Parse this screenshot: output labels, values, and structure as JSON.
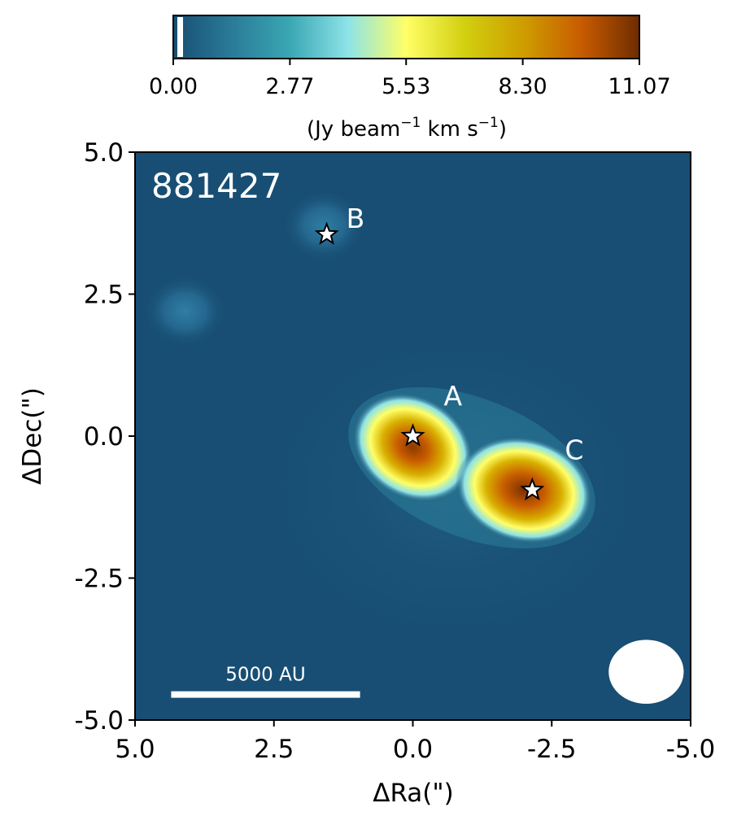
{
  "chart_data": {
    "type": "heatmap",
    "title": "",
    "field_label": "881427",
    "xlabel": "ΔRa(\")",
    "ylabel": "ΔDec(\")",
    "xlim": [
      5.0,
      -5.0
    ],
    "ylim": [
      -5.0,
      5.0
    ],
    "x_ticks": [
      "5.0",
      "2.5",
      "0.0",
      "-2.5",
      "-5.0"
    ],
    "y_ticks": [
      "-5.0",
      "-2.5",
      "0.0",
      "2.5",
      "5.0"
    ],
    "colorbar": {
      "orientation": "horizontal",
      "placement": "top",
      "range": [
        0.0,
        11.07
      ],
      "ticks": [
        "0.00",
        "2.77",
        "5.53",
        "8.30",
        "11.07"
      ],
      "label_prefix": "(Jy beam",
      "label_sup1": "−1",
      "label_mid": " km s",
      "label_sup2": "−1",
      "label_suffix": ")",
      "colormap": [
        "#184e73",
        "#2a7b98",
        "#3aa7b3",
        "#8de3e8",
        "#ffff66",
        "#d2cf10",
        "#ce9e00",
        "#c85c00",
        "#6e2c00"
      ]
    },
    "sources": [
      {
        "name": "A",
        "x": 0.0,
        "y": 0.0
      },
      {
        "name": "B",
        "x": 1.55,
        "y": 3.55
      },
      {
        "name": "C",
        "x": -2.15,
        "y": -0.95
      }
    ],
    "emission_peaks": [
      {
        "x": 0.0,
        "y": -0.2,
        "peak": 10.2
      },
      {
        "x": -2.0,
        "y": -0.95,
        "peak": 11.07
      },
      {
        "x": 1.6,
        "y": 3.7,
        "peak": 1.9
      },
      {
        "x": 4.1,
        "y": 2.2,
        "peak": 1.6
      }
    ],
    "background_level": 0.1,
    "scalebar": {
      "label": "5000 AU",
      "x_start": 4.35,
      "x_end": 0.95,
      "y": -4.55
    },
    "beam": {
      "x": -4.2,
      "y": -4.15,
      "major": 1.15,
      "minor": 1.35
    }
  }
}
